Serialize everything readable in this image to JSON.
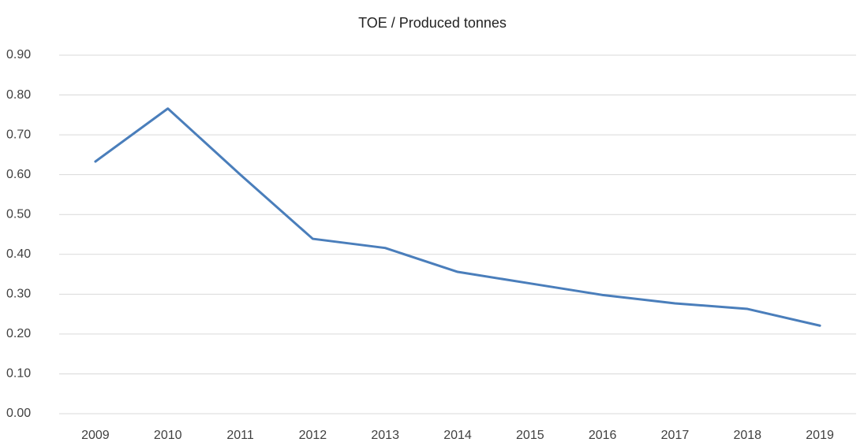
{
  "chart_data": {
    "type": "line",
    "title": "TOE / Produced tonnes",
    "categories": [
      "2009",
      "2010",
      "2011",
      "2012",
      "2013",
      "2014",
      "2015",
      "2016",
      "2017",
      "2018",
      "2019"
    ],
    "series": [
      {
        "name": "TOE / Produced tonnes",
        "color": "#4a7ebb",
        "values": [
          0.633,
          0.766,
          0.6,
          0.439,
          0.416,
          0.356,
          0.327,
          0.298,
          0.277,
          0.263,
          0.221
        ]
      }
    ],
    "ylim": [
      0,
      0.9
    ],
    "yticks": [
      {
        "value": 0,
        "label": "0.00"
      },
      {
        "value": 0.1,
        "label": "0.10"
      },
      {
        "value": 0.2,
        "label": "0.20"
      },
      {
        "value": 0.3,
        "label": "0.30"
      },
      {
        "value": 0.4,
        "label": "0.40"
      },
      {
        "value": 0.5,
        "label": "0.50"
      },
      {
        "value": 0.6,
        "label": "0.60"
      },
      {
        "value": 0.7,
        "label": "0.70"
      },
      {
        "value": 0.8,
        "label": "0.80"
      },
      {
        "value": 0.9,
        "label": "0.90"
      }
    ],
    "grid": true
  }
}
